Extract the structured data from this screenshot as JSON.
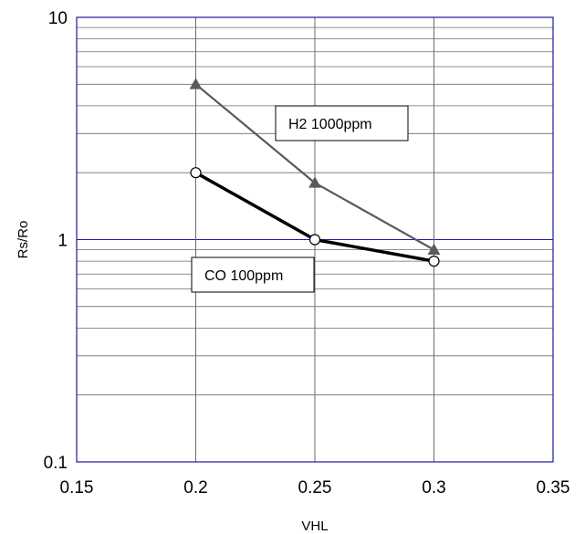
{
  "chart_data": {
    "type": "line",
    "title": "",
    "xlabel": "VHL",
    "ylabel": "Rs/Ro",
    "xlim": [
      0.15,
      0.35
    ],
    "ylim": [
      0.1,
      10
    ],
    "yscale": "log",
    "grid": true,
    "x_ticks": [
      "0.15",
      "0.2",
      "0.25",
      "0.3",
      "0.35"
    ],
    "y_ticks": [
      "0.1",
      "1",
      "10"
    ],
    "series": [
      {
        "name": "H2 1000ppm",
        "x": [
          0.2,
          0.25,
          0.3
        ],
        "y": [
          5.0,
          1.8,
          0.9
        ],
        "color": "#5a5a5a",
        "marker": "filled-triangle"
      },
      {
        "name": "CO 100ppm",
        "x": [
          0.2,
          0.25,
          0.3
        ],
        "y": [
          2.0,
          1.0,
          0.8
        ],
        "color": "#000000",
        "marker": "open-circle"
      }
    ],
    "annotations": [
      {
        "text": "H2 1000ppm",
        "series": 0
      },
      {
        "text": "CO 100ppm",
        "series": 1
      }
    ]
  }
}
